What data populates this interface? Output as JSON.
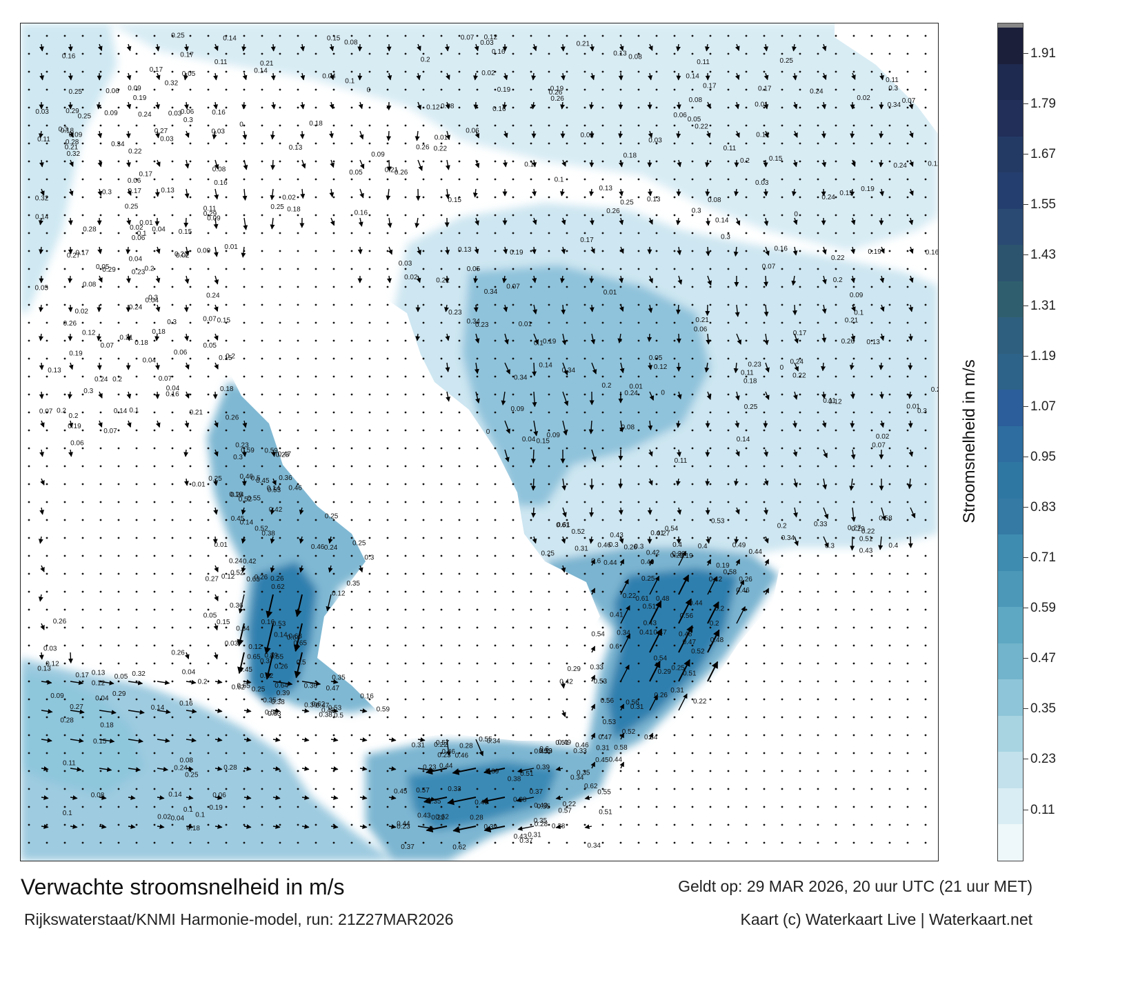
{
  "map": {
    "background_color": "#ffffff",
    "current_color_light": "#dcedf5",
    "current_color_mid": "#5aaccb",
    "current_color_dark": "#1f6f9c",
    "arrow_color": "#000000",
    "grid_dots": true
  },
  "colorbar": {
    "title": "Stroomsnelheid in m/s",
    "tick_labels": [
      "1.91",
      "1.79",
      "1.67",
      "1.55",
      "1.43",
      "1.31",
      "1.19",
      "1.07",
      "0.95",
      "0.83",
      "0.71",
      "0.59",
      "0.47",
      "0.35",
      "0.23",
      "0.11"
    ],
    "segments_top_to_bottom": [
      "#1b1f3a",
      "#1e2a4f",
      "#212f59",
      "#233a65",
      "#243f6f",
      "#2a4a74",
      "#2c546f",
      "#2f5f6e",
      "#2f5f7e",
      "#2e6389",
      "#2b5e9a",
      "#2e6d9f",
      "#2f77a3",
      "#347aa5",
      "#3f8cb1",
      "#4b98b9",
      "#5ea8c3",
      "#71b4cb",
      "#8ec5d8",
      "#a8d4e2",
      "#c2e1ec",
      "#d9edf4",
      "#eef7fa"
    ]
  },
  "labels": {
    "west": [
      "0.14",
      "0.15",
      "0.11",
      "0.1",
      "0.09",
      "0.13",
      "0.07",
      "0.08",
      "0.06",
      "0.05",
      "0.04",
      "0.03",
      "0.02",
      "0.01",
      "0.12",
      "0.16",
      "0.17",
      "0.18",
      "0.2",
      "0.21",
      "0.26",
      "0.28",
      "0.32",
      "0.27",
      "0.24",
      "0.25",
      "0.29",
      "0.3",
      "0.19"
    ],
    "central": [
      "0.24",
      "0.25",
      "0.26",
      "0.16",
      "0.14",
      "0.12",
      "0.47",
      "0.46",
      "0.42",
      "0.36",
      "0.45",
      "0.38",
      "0.52",
      "0.59",
      "0.53",
      "0.63",
      "0.62",
      "0.64",
      "0.55",
      "0.65",
      "0.5",
      "0.39",
      "0.35",
      "0.3"
    ],
    "channel": [
      "0.51",
      "0.45",
      "0.46",
      "0.62",
      "0.55",
      "0.57",
      "0.37",
      "0.38",
      "0.44",
      "0.39",
      "0.43",
      "0.33",
      "0.28",
      "0.31",
      "0.34",
      "0.35",
      "0.22",
      "0.23"
    ],
    "east": [
      "0.44",
      "0.34",
      "0.33",
      "0.43",
      "0.46",
      "0.58",
      "0.56",
      "0.61",
      "0.52",
      "0.54",
      "0.49",
      "0.48",
      "0.47",
      "0.41",
      "0.42",
      "0.4",
      "0.53",
      "0.51",
      "0.6",
      "0.29",
      "0.27",
      "0.26",
      "0.25",
      "0.22",
      "0.3",
      "0.31",
      "0.2",
      "0.19"
    ],
    "north": [
      "0.04",
      "0.08",
      "0.06",
      "0.03",
      "0.13",
      "0.11",
      "0.09",
      "0.07",
      "0.05",
      "0.16",
      "0.17",
      "0.19",
      "0.2",
      "0.21",
      "0.18",
      "0.22",
      "0.23",
      "0.24",
      "0.25",
      "0.26",
      "0.34",
      "0.3",
      "0.12",
      "0.1",
      "0.15",
      "0.14",
      "0.01",
      "0.02",
      "0"
    ]
  },
  "footer": {
    "title": "Verwachte stroomsnelheid in m/s",
    "model": "Rijkswaterstaat/KNMI Harmonie-model, run: 21Z27MAR2026",
    "valid": "Geldt op: 29 MAR 2026, 20 uur UTC (21 uur MET)",
    "credit": "Kaart (c) Waterkaart Live | Waterkaart.net"
  }
}
